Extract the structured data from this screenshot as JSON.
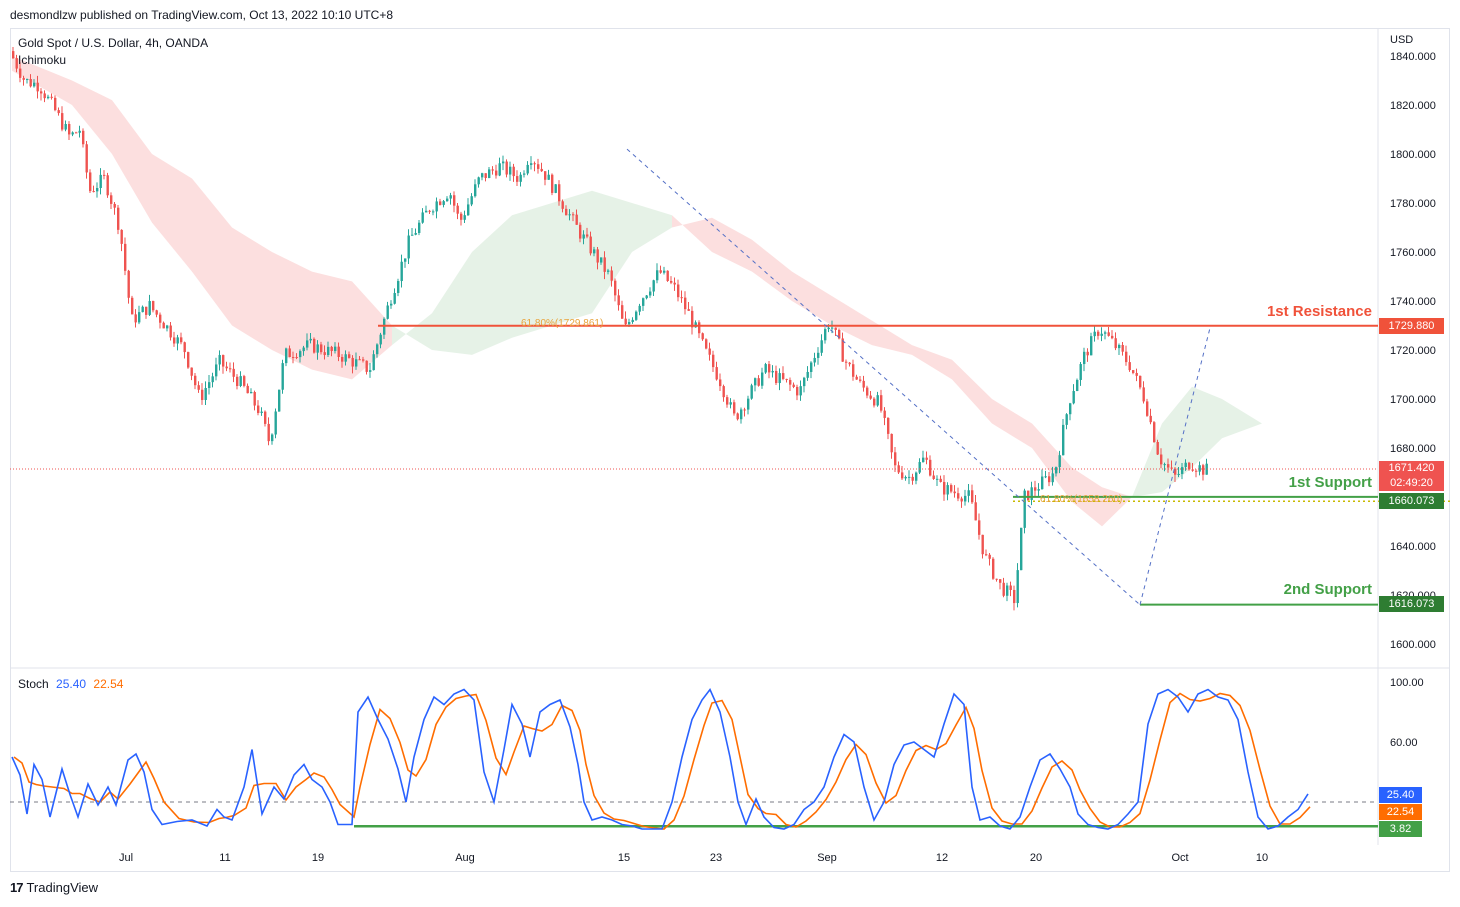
{
  "header": {
    "publisher": "desmondlzw published on TradingView.com, Oct 13, 2022 10:10 UTC+8"
  },
  "footer": {
    "brand": "TradingView"
  },
  "colors": {
    "up": "#26a69a",
    "down": "#ef5350",
    "resistance": "#f0523a",
    "support": "#43a047",
    "stoch_k": "#2962ff",
    "stoch_d": "#ff6d00",
    "cloud_bear": "#fcdcdc",
    "cloud_bull": "#e3f1e4"
  },
  "chart_data": [
    {
      "type": "candlestick",
      "title": "Gold Spot / U.S. Dollar, 4h, OANDA",
      "indicator": "Ichimoku",
      "currency": "USD",
      "y_ticks": [
        "1840.000",
        "1820.000",
        "1800.000",
        "1780.000",
        "1760.000",
        "1740.000",
        "1720.000",
        "1700.000",
        "1680.000",
        "1660.000",
        "1640.000",
        "1620.000",
        "1600.000"
      ],
      "ylim": [
        1596,
        1846
      ],
      "x_ticks": [
        "Jul",
        "11",
        "19",
        "Aug",
        "15",
        "23",
        "Sep",
        "12",
        "20",
        "Oct",
        "10"
      ],
      "price_path": [
        [
          0,
          1842
        ],
        [
          15,
          1830
        ],
        [
          30,
          1828
        ],
        [
          45,
          1818
        ],
        [
          60,
          1807
        ],
        [
          70,
          1810
        ],
        [
          80,
          1785
        ],
        [
          95,
          1790
        ],
        [
          110,
          1770
        ],
        [
          122,
          1732
        ],
        [
          140,
          1738
        ],
        [
          160,
          1728
        ],
        [
          175,
          1720
        ],
        [
          190,
          1700
        ],
        [
          210,
          1715
        ],
        [
          230,
          1707
        ],
        [
          250,
          1695
        ],
        [
          260,
          1682
        ],
        [
          275,
          1718
        ],
        [
          300,
          1722
        ],
        [
          330,
          1718
        ],
        [
          360,
          1712
        ],
        [
          380,
          1740
        ],
        [
          400,
          1765
        ],
        [
          420,
          1778
        ],
        [
          440,
          1785
        ],
        [
          450,
          1772
        ],
        [
          470,
          1790
        ],
        [
          490,
          1795
        ],
        [
          510,
          1790
        ],
        [
          520,
          1800
        ],
        [
          535,
          1792
        ],
        [
          550,
          1782
        ],
        [
          570,
          1768
        ],
        [
          600,
          1750
        ],
        [
          615,
          1728
        ],
        [
          630,
          1740
        ],
        [
          650,
          1752
        ],
        [
          665,
          1745
        ],
        [
          680,
          1734
        ],
        [
          695,
          1720
        ],
        [
          710,
          1708
        ],
        [
          725,
          1692
        ],
        [
          740,
          1702
        ],
        [
          755,
          1712
        ],
        [
          770,
          1708
        ],
        [
          790,
          1703
        ],
        [
          805,
          1718
        ],
        [
          820,
          1732
        ],
        [
          835,
          1716
        ],
        [
          850,
          1706
        ],
        [
          870,
          1698
        ],
        [
          885,
          1672
        ],
        [
          900,
          1668
        ],
        [
          915,
          1676
        ],
        [
          930,
          1664
        ],
        [
          945,
          1662
        ],
        [
          960,
          1660
        ],
        [
          975,
          1636
        ],
        [
          990,
          1624
        ],
        [
          1005,
          1618
        ],
        [
          1015,
          1660
        ],
        [
          1030,
          1665
        ],
        [
          1045,
          1670
        ],
        [
          1060,
          1700
        ],
        [
          1075,
          1718
        ],
        [
          1090,
          1729
        ],
        [
          1105,
          1722
        ],
        [
          1120,
          1714
        ],
        [
          1135,
          1700
        ],
        [
          1150,
          1676
        ],
        [
          1165,
          1668
        ],
        [
          1180,
          1674
        ],
        [
          1195,
          1671
        ]
      ],
      "ichimoku_cloud": [
        [
          0,
          1840,
          1834
        ],
        [
          60,
          1830,
          1820
        ],
        [
          100,
          1822,
          1800
        ],
        [
          140,
          1800,
          1772
        ],
        [
          180,
          1790,
          1752
        ],
        [
          220,
          1770,
          1730
        ],
        [
          260,
          1760,
          1720
        ],
        [
          300,
          1752,
          1712
        ],
        [
          340,
          1748,
          1708
        ],
        [
          380,
          1730,
          1722
        ],
        [
          420,
          1720,
          1735
        ],
        [
          460,
          1718,
          1760
        ],
        [
          500,
          1725,
          1775
        ],
        [
          540,
          1730,
          1780
        ],
        [
          580,
          1735,
          1785
        ],
        [
          620,
          1760,
          1780
        ],
        [
          660,
          1770,
          1775
        ],
        [
          700,
          1774,
          1760
        ],
        [
          740,
          1765,
          1752
        ],
        [
          780,
          1752,
          1740
        ],
        [
          820,
          1742,
          1730
        ],
        [
          860,
          1732,
          1722
        ],
        [
          900,
          1722,
          1718
        ],
        [
          940,
          1716,
          1708
        ],
        [
          980,
          1700,
          1690
        ],
        [
          1020,
          1690,
          1680
        ],
        [
          1060,
          1672,
          1658
        ],
        [
          1090,
          1664,
          1648
        ],
        [
          1120,
          1660,
          1660
        ],
        [
          1150,
          1662,
          1690
        ],
        [
          1180,
          1672,
          1705
        ],
        [
          1210,
          1684,
          1700
        ],
        [
          1250,
          1690,
          1690
        ]
      ],
      "annotations": {
        "resistance_1": {
          "label": "1st Resistance",
          "value": 1729.88,
          "value_label": "1729.880"
        },
        "support_1": {
          "label": "1st Support",
          "value": 1660.073,
          "value_label": "1660.073"
        },
        "support_2": {
          "label": "2nd Support",
          "value": 1616.073,
          "value_label": "1616.073"
        },
        "fib_upper": {
          "label": "61.80%(1729.861)",
          "value": 1729.861
        },
        "fib_lower": {
          "label": "61.80%(1658.260)",
          "value": 1658.26
        },
        "last_price": {
          "value": 1671.42,
          "value_label": "1671.420",
          "countdown": "02:49:20"
        }
      }
    },
    {
      "type": "line",
      "title": "Stoch",
      "k_value_label": "25.40",
      "d_value_label": "22.54",
      "support_level_label": "3.82",
      "y_ticks": [
        "100.00",
        "60.00"
      ],
      "ylim": [
        0,
        104
      ],
      "k_path": [
        [
          0,
          50
        ],
        [
          8,
          38
        ],
        [
          15,
          12
        ],
        [
          22,
          45
        ],
        [
          30,
          35
        ],
        [
          38,
          10
        ],
        [
          50,
          42
        ],
        [
          58,
          25
        ],
        [
          66,
          10
        ],
        [
          76,
          32
        ],
        [
          86,
          18
        ],
        [
          96,
          30
        ],
        [
          104,
          18
        ],
        [
          116,
          48
        ],
        [
          124,
          52
        ],
        [
          132,
          40
        ],
        [
          140,
          15
        ],
        [
          150,
          5
        ],
        [
          165,
          7
        ],
        [
          180,
          8
        ],
        [
          195,
          4
        ],
        [
          205,
          15
        ],
        [
          212,
          10
        ],
        [
          220,
          8
        ],
        [
          232,
          30
        ],
        [
          240,
          55
        ],
        [
          250,
          12
        ],
        [
          262,
          30
        ],
        [
          272,
          22
        ],
        [
          282,
          38
        ],
        [
          292,
          45
        ],
        [
          300,
          35
        ],
        [
          310,
          30
        ],
        [
          318,
          20
        ],
        [
          326,
          5
        ],
        [
          340,
          5
        ],
        [
          346,
          80
        ],
        [
          356,
          90
        ],
        [
          366,
          75
        ],
        [
          376,
          62
        ],
        [
          386,
          42
        ],
        [
          394,
          20
        ],
        [
          402,
          50
        ],
        [
          412,
          75
        ],
        [
          422,
          90
        ],
        [
          432,
          85
        ],
        [
          442,
          92
        ],
        [
          452,
          95
        ],
        [
          462,
          88
        ],
        [
          472,
          40
        ],
        [
          482,
          20
        ],
        [
          492,
          55
        ],
        [
          500,
          85
        ],
        [
          510,
          72
        ],
        [
          518,
          50
        ],
        [
          528,
          80
        ],
        [
          538,
          85
        ],
        [
          548,
          88
        ],
        [
          558,
          70
        ],
        [
          566,
          45
        ],
        [
          572,
          20
        ],
        [
          580,
          8
        ],
        [
          590,
          10
        ],
        [
          600,
          8
        ],
        [
          610,
          5
        ],
        [
          620,
          4
        ],
        [
          630,
          2
        ],
        [
          640,
          2
        ],
        [
          650,
          2
        ],
        [
          660,
          20
        ],
        [
          670,
          50
        ],
        [
          680,
          75
        ],
        [
          690,
          88
        ],
        [
          698,
          95
        ],
        [
          708,
          80
        ],
        [
          718,
          50
        ],
        [
          726,
          20
        ],
        [
          734,
          5
        ],
        [
          744,
          22
        ],
        [
          752,
          10
        ],
        [
          762,
          3
        ],
        [
          772,
          2
        ],
        [
          782,
          5
        ],
        [
          792,
          15
        ],
        [
          802,
          20
        ],
        [
          812,
          30
        ],
        [
          822,
          50
        ],
        [
          832,
          65
        ],
        [
          842,
          60
        ],
        [
          852,
          30
        ],
        [
          862,
          8
        ],
        [
          872,
          20
        ],
        [
          882,
          45
        ],
        [
          892,
          58
        ],
        [
          902,
          60
        ],
        [
          912,
          55
        ],
        [
          922,
          50
        ],
        [
          932,
          72
        ],
        [
          942,
          92
        ],
        [
          952,
          85
        ],
        [
          960,
          30
        ],
        [
          968,
          8
        ],
        [
          978,
          10
        ],
        [
          988,
          4
        ],
        [
          998,
          2
        ],
        [
          1008,
          10
        ],
        [
          1018,
          30
        ],
        [
          1028,
          48
        ],
        [
          1038,
          52
        ],
        [
          1048,
          42
        ],
        [
          1058,
          30
        ],
        [
          1066,
          12
        ],
        [
          1076,
          5
        ],
        [
          1086,
          3
        ],
        [
          1096,
          2
        ],
        [
          1106,
          5
        ],
        [
          1116,
          12
        ],
        [
          1126,
          20
        ],
        [
          1136,
          72
        ],
        [
          1146,
          92
        ],
        [
          1156,
          95
        ],
        [
          1166,
          90
        ],
        [
          1176,
          80
        ],
        [
          1186,
          92
        ],
        [
          1196,
          95
        ],
        [
          1206,
          90
        ],
        [
          1216,
          88
        ],
        [
          1226,
          75
        ],
        [
          1236,
          40
        ],
        [
          1246,
          10
        ],
        [
          1256,
          2
        ],
        [
          1266,
          4
        ],
        [
          1276,
          10
        ],
        [
          1286,
          15
        ],
        [
          1296,
          25.4
        ]
      ]
    }
  ]
}
